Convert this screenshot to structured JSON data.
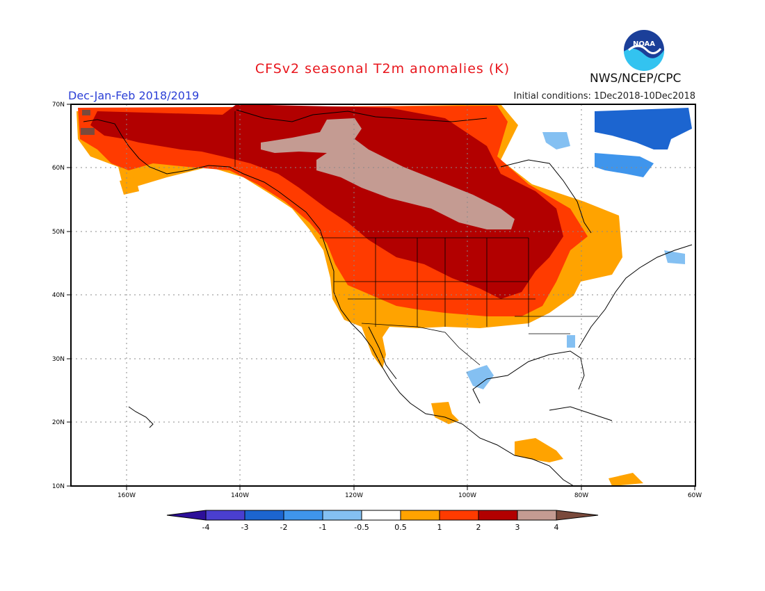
{
  "title": "CFSv2 seasonal T2m anomalies (K)",
  "period": "Dec-Jan-Feb 2018/2019",
  "initial_conditions": "Initial conditions: 1Dec2018-10Dec2018",
  "agency": "NWS/NCEP/CPC",
  "logo_text": "NOAA",
  "lat_labels": [
    "70N",
    "60N",
    "50N",
    "40N",
    "30N",
    "20N",
    "10N"
  ],
  "lon_labels": [
    "160W",
    "140W",
    "120W",
    "100W",
    "80W",
    "60W"
  ],
  "colorbar": {
    "labels": [
      "-4",
      "-3",
      "-2",
      "-1",
      "-0.5",
      "0.5",
      "1",
      "2",
      "3",
      "4"
    ],
    "colors": [
      "#2d0f99",
      "#4a3fd0",
      "#1c65d0",
      "#3f95ec",
      "#84c0f2",
      "#ffffff",
      "#ffa300",
      "#ff3b00",
      "#b20000",
      "#c49b92",
      "#7a4a3c"
    ]
  }
}
